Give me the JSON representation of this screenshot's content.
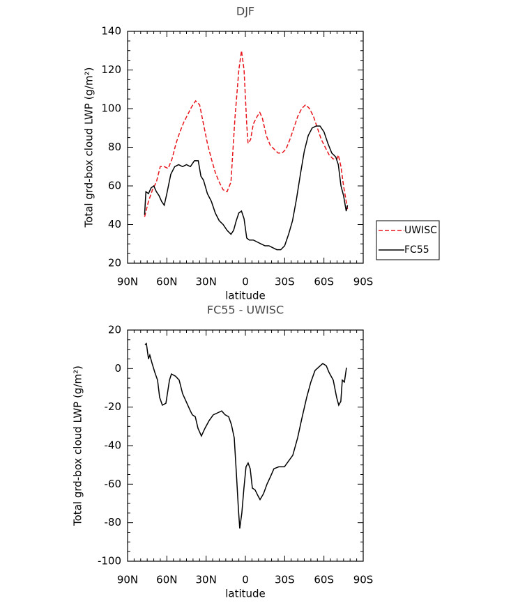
{
  "chart_data": [
    {
      "type": "line",
      "title": "DJF",
      "xlabel": "latitude",
      "ylabel": "Total grd-box cloud LWP (g/m²)",
      "xlim": [
        90,
        -90
      ],
      "xticks": [
        {
          "value": 90,
          "label": "90N"
        },
        {
          "value": 60,
          "label": "60N"
        },
        {
          "value": 30,
          "label": "30N"
        },
        0,
        {
          "value": -30,
          "label": "30S"
        },
        {
          "value": -60,
          "label": "60S"
        },
        {
          "value": -90,
          "label": "90S"
        }
      ],
      "ylim": [
        20,
        140
      ],
      "yticks": [
        20,
        40,
        60,
        80,
        100,
        120,
        140
      ],
      "legend": "outside right",
      "series": [
        {
          "name": "UWISC",
          "color": "#e8141c",
          "linestyle": "dashed",
          "x": [
            77,
            74,
            71,
            68,
            65,
            62,
            59,
            56,
            53,
            50,
            47,
            44,
            41,
            38,
            35,
            32,
            29,
            26,
            23,
            20,
            17,
            14,
            11,
            8,
            5,
            3,
            1,
            -1,
            -2,
            -4,
            -6,
            -9,
            -11,
            -13,
            -16,
            -19,
            -22,
            -25,
            -28,
            -31,
            -34,
            -37,
            -40,
            -43,
            -46,
            -49,
            -52,
            -55,
            -58,
            -61,
            -64,
            -67,
            -70,
            -71,
            -73,
            -75,
            -77,
            -78
          ],
          "values": [
            44,
            52,
            58,
            62,
            70,
            70,
            69,
            74,
            82,
            88,
            93,
            97,
            101,
            104,
            102,
            92,
            82,
            74,
            67,
            62,
            58,
            57,
            62,
            95,
            120,
            130,
            120,
            92,
            82,
            84,
            92,
            96,
            98,
            95,
            86,
            81,
            79,
            77,
            77,
            79,
            84,
            90,
            96,
            100,
            102,
            100,
            96,
            90,
            84,
            80,
            76,
            74,
            74,
            76,
            70,
            60,
            52,
            48
          ]
        },
        {
          "name": "FC55",
          "color": "#000000",
          "linestyle": "solid",
          "x": [
            77,
            76,
            74,
            72,
            70,
            68,
            66,
            64,
            62,
            60,
            57,
            54,
            51,
            48,
            45,
            42,
            39,
            36,
            34,
            32,
            29,
            26,
            23,
            20,
            17,
            14,
            11,
            9,
            7,
            5,
            3,
            1,
            -1,
            -3,
            -6,
            -9,
            -12,
            -15,
            -18,
            -21,
            -24,
            -27,
            -30,
            -33,
            -36,
            -39,
            -42,
            -45,
            -48,
            -51,
            -54,
            -57,
            -60,
            -63,
            -66,
            -69,
            -71,
            -73,
            -75,
            -77,
            -78
          ],
          "values": [
            45,
            57,
            56,
            59,
            60,
            57,
            55,
            52,
            50,
            56,
            66,
            70,
            71,
            70,
            71,
            70,
            73,
            73,
            65,
            63,
            56,
            52,
            46,
            42,
            40,
            37,
            35,
            37,
            42,
            46,
            47,
            43,
            33,
            32,
            32,
            31,
            30,
            29,
            29,
            28,
            27,
            27,
            29,
            35,
            42,
            53,
            66,
            78,
            86,
            90,
            91,
            91,
            88,
            82,
            77,
            75,
            71,
            60,
            55,
            47,
            50
          ]
        }
      ]
    },
    {
      "type": "line",
      "title": "FC55 - UWISC",
      "xlabel": "latitude",
      "ylabel": "Total grd-box cloud LWP (g/m²)",
      "xlim": [
        90,
        -90
      ],
      "xticks": [
        {
          "value": 90,
          "label": "90N"
        },
        {
          "value": 60,
          "label": "60N"
        },
        {
          "value": 30,
          "label": "30N"
        },
        0,
        {
          "value": -30,
          "label": "30S"
        },
        {
          "value": -60,
          "label": "60S"
        },
        {
          "value": -90,
          "label": "90S"
        }
      ],
      "ylim": [
        -100,
        20
      ],
      "yticks": [
        -100,
        -80,
        -60,
        -40,
        -20,
        0,
        20
      ],
      "color": "#000000",
      "x": [
        76.7,
        75.6,
        74,
        73,
        71.4,
        69.2,
        67.1,
        65.5,
        63.4,
        60.7,
        58,
        56.5,
        53.3,
        50.6,
        48,
        44.7,
        42,
        40.5,
        38.3,
        36.2,
        33.6,
        30.9,
        27.7,
        24.5,
        21.3,
        18.1,
        15.5,
        12.8,
        10.7,
        8.5,
        6.9,
        5.3,
        4.3,
        2.7,
        1.1,
        -0.5,
        -2.1,
        -3.7,
        -5.3,
        -7.4,
        -9.6,
        -11.2,
        -13.8,
        -16.5,
        -19.2,
        -21.8,
        -25.5,
        -29.8,
        -33,
        -36.2,
        -39.9,
        -43.1,
        -46.8,
        -50,
        -53.2,
        -56.4,
        -59.1,
        -61.8,
        -63.9,
        -67.1,
        -69.7,
        -71.3,
        -72.9,
        -74,
        -75.6,
        -77.2
      ],
      "values": [
        12.4,
        13,
        5,
        7,
        3,
        -2,
        -6,
        -15,
        -19,
        -18,
        -6,
        -2.8,
        -4,
        -6,
        -13,
        -18,
        -22,
        -24,
        -25,
        -31,
        -35,
        -31,
        -27,
        -24,
        -23,
        -22,
        -24,
        -25,
        -29,
        -36,
        -54,
        -73,
        -83,
        -75,
        -62,
        -51,
        -49,
        -52,
        -62,
        -63,
        -66,
        -68,
        -65,
        -60,
        -56,
        -52,
        -51,
        -51,
        -48,
        -45,
        -36,
        -26,
        -15,
        -7,
        -1,
        1,
        2.6,
        1.5,
        -2,
        -6,
        -15,
        -19,
        -17,
        -6,
        -7,
        0.5
      ]
    }
  ]
}
